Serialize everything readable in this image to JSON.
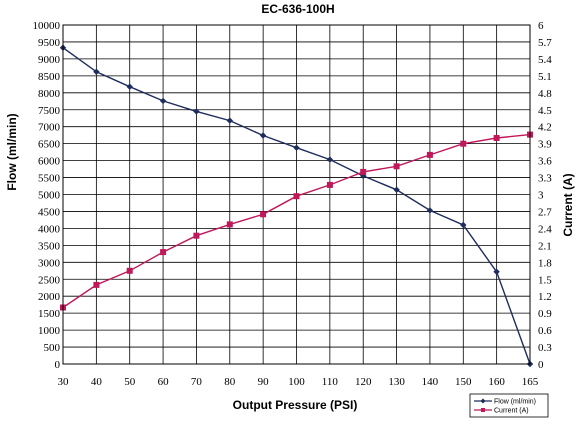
{
  "chart_data": {
    "type": "line",
    "title": "EC-636-100H",
    "xlabel": "Output Pressure (PSI)",
    "ylabel": "Flow (ml/min)",
    "y2label": "Current (A)",
    "xlim": [
      30,
      165
    ],
    "ylim": [
      0,
      10000
    ],
    "y2lim": [
      0,
      6
    ],
    "x_ticks": [
      "30",
      "40",
      "50",
      "60",
      "70",
      "80",
      "90",
      "100",
      "110",
      "120",
      "130",
      "140",
      "150",
      "160",
      "165"
    ],
    "y_ticks": [
      "0",
      "500",
      "1000",
      "1500",
      "2000",
      "2500",
      "3000",
      "3500",
      "4000",
      "4500",
      "5000",
      "5500",
      "6000",
      "6500",
      "7000",
      "7500",
      "8000",
      "8500",
      "9000",
      "9500",
      "10000"
    ],
    "y2_ticks": [
      "0",
      "0.3",
      "0.6",
      "0.9",
      "1.2",
      "1.5",
      "1.8",
      "2.1",
      "2.4",
      "2.7",
      "3",
      "3.3",
      "3.6",
      "3.9",
      "4.2",
      "4.5",
      "4.8",
      "5.1",
      "5.4",
      "5.7",
      "6"
    ],
    "grid": true,
    "legend_position": "bottom-right",
    "series": [
      {
        "name": "Flow (ml/min)",
        "axis": "left",
        "color": "#1f2d5c",
        "marker": "diamond",
        "x": [
          30,
          40,
          50,
          60,
          70,
          80,
          90,
          100,
          110,
          120,
          130,
          140,
          150,
          160,
          165
        ],
        "y": [
          9330,
          8620,
          8180,
          7760,
          7450,
          7180,
          6740,
          6380,
          6030,
          5550,
          5140,
          4530,
          4100,
          2720,
          0
        ]
      },
      {
        "name": "Current (A)",
        "axis": "right",
        "color": "#c0185a",
        "marker": "square",
        "x": [
          30,
          40,
          50,
          60,
          70,
          80,
          90,
          100,
          110,
          120,
          130,
          140,
          150,
          160,
          165
        ],
        "y": [
          1.0,
          1.4,
          1.65,
          1.98,
          2.27,
          2.47,
          2.65,
          2.97,
          3.17,
          3.4,
          3.5,
          3.7,
          3.9,
          4.0,
          4.06
        ]
      }
    ]
  }
}
